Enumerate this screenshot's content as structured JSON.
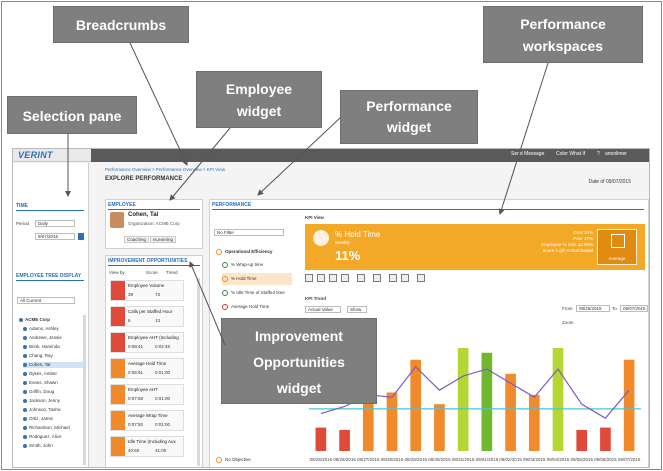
{
  "annotations": {
    "breadcrumbs": "Breadcrumbs",
    "employee_widget_line1": "Employee",
    "employee_widget_line2": "widget",
    "performance_widget_line1": "Performance",
    "performance_widget_line2": "widget",
    "performance_workspaces_line1": "Performance",
    "performance_workspaces_line2": "workspaces",
    "selection_pane": "Selection pane",
    "improvement_line1": "Improvement",
    "improvement_line2": "Opportunities",
    "improvement_line3": "widget"
  },
  "app": {
    "logo": "VERINT",
    "top_items": [
      "Send Message",
      "Color What If",
      "?",
      "anonlimer"
    ],
    "breadcrumb": "Performance Overview  >  Performance Overview  >  KPI View",
    "page_title": "EXPLORE PERFORMANCE",
    "date_label": "Date of 09/07/2015"
  },
  "selection": {
    "time_title": "TIME",
    "period_label": "Period",
    "period_value": "Daily",
    "date_value": "9/07/2015",
    "tree_title": "EMPLOYEE TREE DISPLAY",
    "filter_value": "All Current",
    "root": "ACME Corp",
    "people": [
      "Adams, Ashley",
      "Andrews, Jessie",
      "Brink, Haminda",
      "Chang, Ray",
      "Cohen, Tal",
      "Dykes, Amber",
      "Evans, Shawn",
      "Griffin, Doug",
      "Jackson, Jenny",
      "Johnson, Tasha",
      "Ortiz, Jamie",
      "Richardson, Michael",
      "Rodriguez, Alice",
      "Smith, John"
    ],
    "selected_index": 4
  },
  "employee": {
    "section_title": "EMPLOYEE",
    "name": "Cohen, Tal",
    "org": "Organization: ACME Corp",
    "coaching": "Coaching",
    "elearning": "eLearning"
  },
  "improvement": {
    "section_title": "IMPROVEMENT OPPORTUNITIES",
    "view_by": "View by",
    "score": "Score",
    "trend": "Trend",
    "cards": [
      {
        "title": "Employee Volume",
        "value": "39",
        "goal": "73",
        "color": "red"
      },
      {
        "title": "Calls per Staffed Hour",
        "value": "6",
        "goal": "13",
        "color": "red"
      },
      {
        "title": "Employee AHT (Including",
        "value": "0:08:41",
        "goal": "0:02:45",
        "color": "red"
      },
      {
        "title": "Average Hold Time",
        "value": "0:08:91",
        "goal": "0:01:00",
        "color": "orange"
      },
      {
        "title": "Employee AHT",
        "value": "0:07:58",
        "goal": "0:01:00",
        "color": "orange"
      },
      {
        "title": "Average Wrap Time",
        "value": "0:07:50",
        "goal": "0:01:00",
        "color": "orange"
      },
      {
        "title": "Idle Time (Including Aux",
        "value": "40:50",
        "goal": "31:00",
        "color": "orange"
      }
    ]
  },
  "performance": {
    "section_title": "PERFORMANCE",
    "filter": "No Filter",
    "kpi_view_label": "KPI View",
    "group": "Operational Efficiency",
    "kpis": [
      "% Wrap-up time",
      "% Hold Time",
      "% Idle Time of Staffed time",
      "Average Hold Time"
    ],
    "no_objective": "No Objective",
    "banner_title": "% Hold Time",
    "banner_sub": "Weekly",
    "banner_value": "11%",
    "banner_stats": [
      "Goal  10%",
      "Peer  47%",
      "Employee % rank  42.90%",
      "Score 1 g/h  Actual Based"
    ],
    "banner_box_label": "Average",
    "trend_title": "KPI Trend",
    "actual_value": "Actual Value",
    "show": "Show",
    "from_label": "From",
    "from_value": "08/25/2015",
    "to_label": "To",
    "to_value": "09/07/2015",
    "zoom_label": "Zoom"
  },
  "chart_data": {
    "type": "bar",
    "categories": [
      "08/25/2015",
      "08/26/2015",
      "08/27/2015",
      "08/28/2015",
      "08/29/2015",
      "08/30/2015",
      "08/31/2015",
      "09/01/2015",
      "09/02/2015",
      "09/03/2015",
      "09/04/2015",
      "09/05/2015",
      "09/06/2015",
      "09/07/2015"
    ],
    "values": [
      1.0,
      0.9,
      2.2,
      2.5,
      3.9,
      2.0,
      4.4,
      4.2,
      3.3,
      2.4,
      4.4,
      0.9,
      1.0,
      3.9
    ],
    "colors": [
      "#e04a3a",
      "#e04a3a",
      "#f08a2a",
      "#f08a2a",
      "#f08a2a",
      "#f08a2a",
      "#b5d633",
      "#70b830",
      "#f08a2a",
      "#f08a2a",
      "#b5d633",
      "#e04a3a",
      "#e04a3a",
      "#f08a2a"
    ],
    "line": [
      1.6,
      1.9,
      2.4,
      2.3,
      3.6,
      2.6,
      3.2,
      3.5,
      2.9,
      2.3,
      3.5,
      2.0,
      1.4,
      2.6
    ],
    "goal": 1.8,
    "ylim": [
      0,
      5
    ]
  }
}
